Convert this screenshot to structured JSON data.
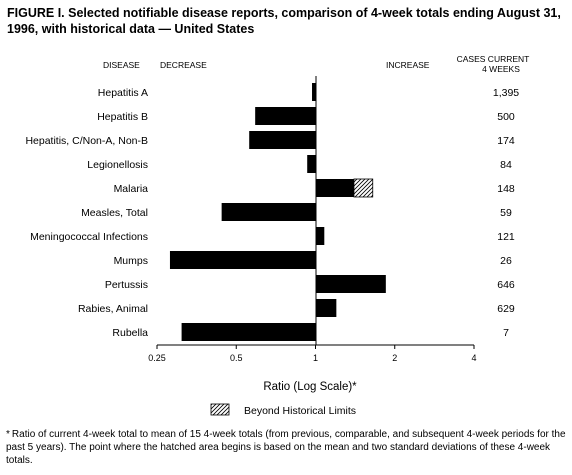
{
  "figure": {
    "title": "FIGURE I. Selected notifiable disease reports, comparison of 4-week totals ending August 31, 1996, with historical data — United States"
  },
  "headers": {
    "disease": "DISEASE",
    "decrease": "DECREASE",
    "increase": "INCREASE",
    "cases_line1": "CASES CURRENT",
    "cases_line2": "4 WEEKS"
  },
  "legend": {
    "label": "Beyond Historical Limits"
  },
  "footnote": {
    "mark": "*",
    "text": "Ratio of current 4-week total to mean of 15 4-week totals (from previous, comparable, and subsequent 4-week periods for the past 5 years). The point where the hatched area begins is based on the mean and two standard deviations of these 4-week totals."
  },
  "chart_data": {
    "type": "bar",
    "orientation": "horizontal",
    "x_scale": "log2",
    "xlabel": "Ratio (Log Scale)*",
    "xlim": [
      0.25,
      4
    ],
    "xticks": [
      0.25,
      0.5,
      1,
      2,
      4
    ],
    "xtick_labels": [
      "0.25",
      "0.5",
      "1",
      "2",
      "4"
    ],
    "reference": 1,
    "categories": [
      "Hepatitis A",
      "Hepatitis B",
      "Hepatitis, C/Non-A, Non-B",
      "Legionellosis",
      "Malaria",
      "Measles, Total",
      "Meningococcal Infections",
      "Mumps",
      "Pertussis",
      "Rabies, Animal",
      "Rubella"
    ],
    "values": [
      0.97,
      0.59,
      0.56,
      0.93,
      1.65,
      0.44,
      1.08,
      0.28,
      1.85,
      1.2,
      0.31
    ],
    "historical_limit": [
      null,
      null,
      null,
      null,
      1.4,
      null,
      null,
      null,
      null,
      null,
      null
    ],
    "cases_current_4_weeks": [
      "1,395",
      "500",
      "174",
      "84",
      "148",
      "59",
      "121",
      "26",
      "646",
      "629",
      "7"
    ],
    "colors": {
      "bar": "#000000",
      "hatch": "#000000",
      "background": "#ffffff"
    }
  }
}
